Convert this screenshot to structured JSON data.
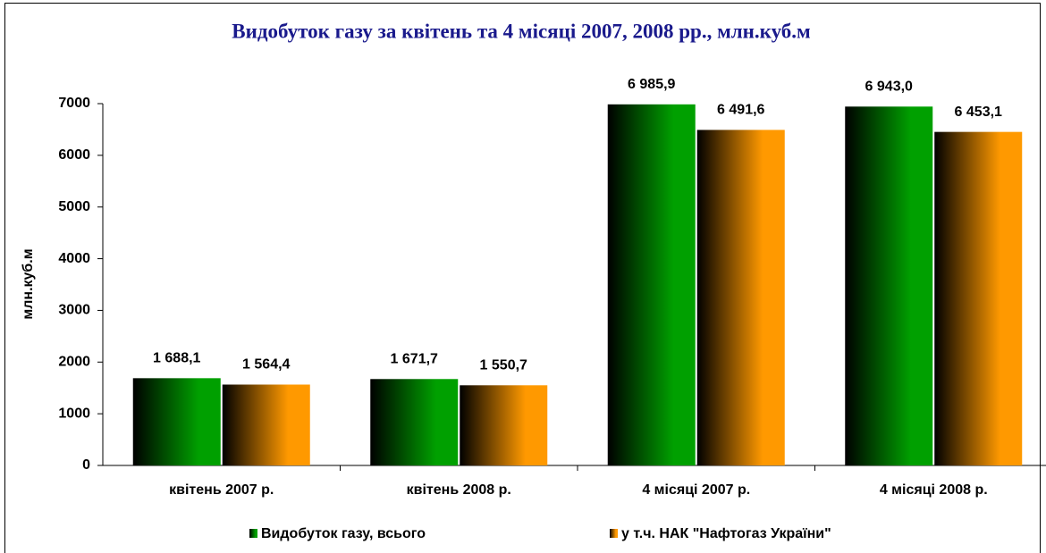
{
  "chart_data": {
    "type": "bar",
    "title": "Видобуток газу за квітень та 4 місяці 2007, 2008 рр.,  млн.куб.м",
    "y_label": "млн.куб.м",
    "categories": [
      "квітень 2007 р.",
      "квітень 2008 р.",
      "4 місяці 2007 р.",
      "4 місяці 2008 р."
    ],
    "series": [
      {
        "name": "Видобуток газу, всього",
        "color": "#00a000",
        "values": [
          1688.1,
          1671.7,
          6985.9,
          6943.0
        ],
        "value_labels": [
          "1 688,1",
          "1 671,7",
          "6 985,9",
          "6 943,0"
        ]
      },
      {
        "name": "у т.ч. НАК \"Нафтогаз України\"",
        "color": "#ff9900",
        "values": [
          1564.4,
          1550.7,
          6491.6,
          6453.1
        ],
        "value_labels": [
          "1 564,4",
          "1 550,7",
          "6 491,6",
          "6 453,1"
        ]
      }
    ],
    "ylim": [
      0,
      7000
    ],
    "yticks": [
      0,
      1000,
      2000,
      3000,
      4000,
      5000,
      6000,
      7000
    ],
    "grid": false
  }
}
